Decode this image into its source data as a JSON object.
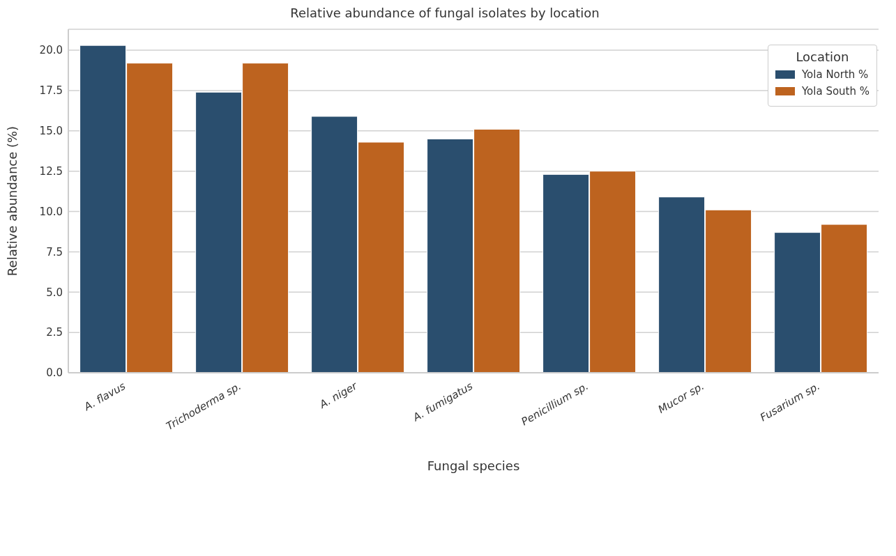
{
  "chart_data": {
    "type": "bar",
    "title": "Relative abundance of fungal isolates by location",
    "xlabel": "Fungal species",
    "ylabel": "Relative abundance (%)",
    "legend_title": "Location",
    "categories": [
      "A. flavus",
      "Trichoderma sp.",
      "A. niger",
      "A. fumigatus",
      "Penicillium sp.",
      "Mucor sp.",
      "Fusarium sp."
    ],
    "series": [
      {
        "name": "Yola North %",
        "color": "#2a4e6e",
        "values": [
          20.3,
          17.4,
          15.9,
          14.5,
          12.3,
          10.9,
          8.7
        ]
      },
      {
        "name": "Yola South %",
        "color": "#bd631f",
        "values": [
          19.2,
          19.2,
          14.3,
          15.1,
          12.5,
          10.1,
          9.2
        ]
      }
    ],
    "ylim": [
      0,
      21.3
    ],
    "yticks": [
      {
        "value": 0,
        "label": "0.0"
      },
      2.5,
      {
        "value": 5,
        "label": "5.0"
      },
      7.5,
      {
        "value": 10,
        "label": "10.0"
      },
      12.5,
      {
        "value": 15,
        "label": "15.0"
      },
      17.5,
      {
        "value": 20,
        "label": "20.0"
      }
    ],
    "grid": "y",
    "legend": "top right"
  }
}
